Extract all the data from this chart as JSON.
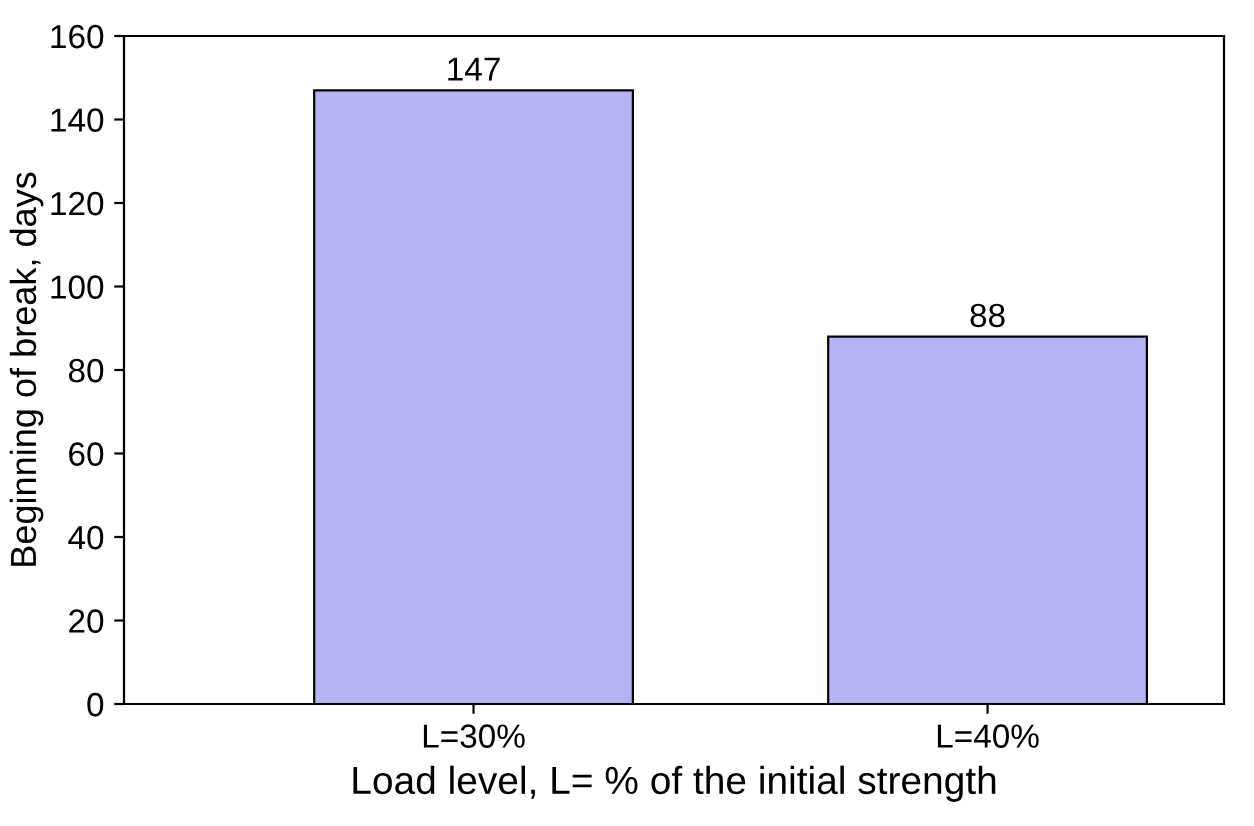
{
  "chart_data": {
    "type": "bar",
    "xlabel": "Load level, L= % of the initial strength",
    "ylabel": "Beginning of break, days",
    "categories": [
      "L=30%",
      "L=40%"
    ],
    "values": [
      147,
      88
    ],
    "color": "#b4b4f4",
    "ylim": [
      0,
      160
    ],
    "yticks": [
      0,
      20,
      40,
      60,
      80,
      100,
      120,
      140,
      160
    ],
    "data_labels": true,
    "grid": false
  }
}
